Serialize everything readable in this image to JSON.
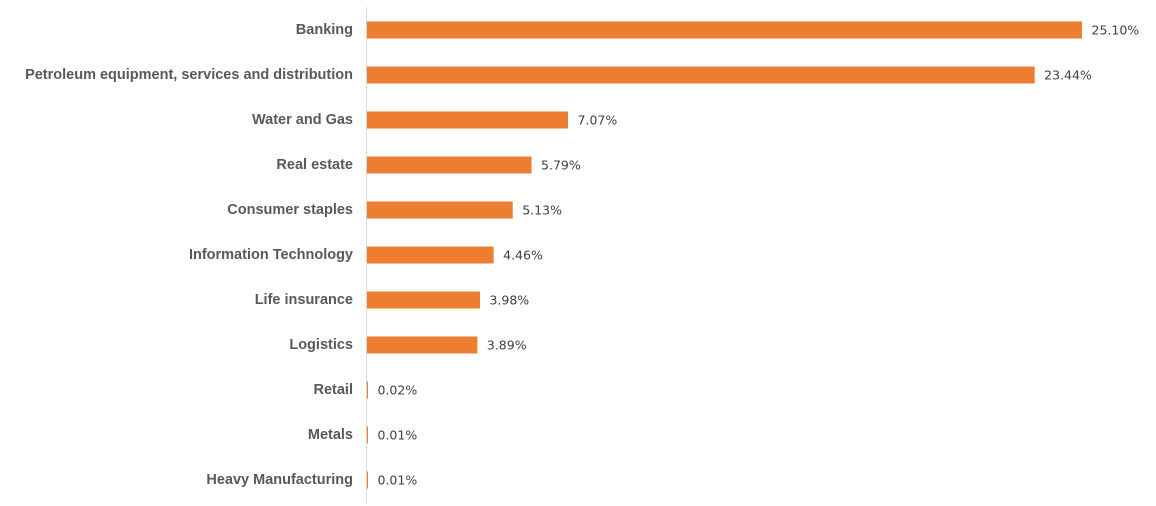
{
  "chart_data": {
    "type": "bar",
    "orientation": "horizontal",
    "categories": [
      "Banking",
      "Petroleum equipment, services and distribution",
      "Water and Gas",
      "Real estate",
      "Consumer staples",
      "Information Technology",
      "Life insurance",
      "Logistics",
      "Retail",
      "Metals",
      "Heavy Manufacturing"
    ],
    "values": [
      25.1,
      23.44,
      7.07,
      5.79,
      5.13,
      4.46,
      3.98,
      3.89,
      0.02,
      0.01,
      0.01
    ],
    "value_labels": [
      "25.10%",
      "23.44%",
      "7.07%",
      "5.79%",
      "5.13%",
      "4.46%",
      "3.98%",
      "3.89%",
      "0.02%",
      "0.01%",
      "0.01%"
    ],
    "title": "",
    "xlabel": "",
    "ylabel": "",
    "grid": false,
    "legend": "none",
    "bar_color": "#ED7D31",
    "axis_color": "#D9D9D9"
  }
}
